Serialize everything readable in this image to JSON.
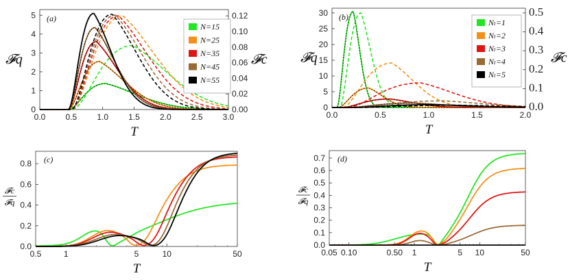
{
  "colors": {
    "green": "#22e622",
    "orange": "#f39019",
    "red": "#e01414",
    "brown": "#9a6a35",
    "black": "#000000"
  },
  "chart_data": [
    {
      "id": "a",
      "type": "line",
      "panel_label": "(a)",
      "xlabel": "T",
      "ylabel_left": "𝓕q",
      "ylabel_right": "𝓕c",
      "xlim": [
        0,
        3
      ],
      "ylim_left": [
        0,
        5.3
      ],
      "ylim_right": [
        0,
        0.128
      ],
      "xticks": [
        0.0,
        0.5,
        1.0,
        1.5,
        2.0,
        2.5,
        3.0
      ],
      "xtick_labels": [
        "0.0",
        "0.5",
        "1.0",
        "1.5",
        "2.0",
        "2.5",
        "3.0"
      ],
      "yticks_left": [
        0,
        1,
        2,
        3,
        4,
        5
      ],
      "ytick_labels_left": [
        "0",
        "1",
        "2",
        "3",
        "4",
        "5"
      ],
      "yticks_right": [
        0,
        0.02,
        0.04,
        0.06,
        0.08,
        0.1,
        0.12
      ],
      "ytick_labels_right": [
        "0.00",
        "0.02",
        "0.04",
        "0.06",
        "0.08",
        "0.10",
        "0.12"
      ],
      "legend": [
        "N=15",
        "N=25",
        "N=35",
        "N=45",
        "N=55"
      ],
      "legend_position": "top-right",
      "series": [
        {
          "name": "N=15",
          "color": "green",
          "solid": {
            "onset": 0.45,
            "peak_x": 1.05,
            "peak": 1.38,
            "decay": 0.85
          },
          "dashed": {
            "onset": 0.5,
            "peak_x": 1.48,
            "peak": 0.082,
            "decay": 0.95
          }
        },
        {
          "name": "N=25",
          "color": "orange",
          "solid": {
            "onset": 0.45,
            "peak_x": 0.95,
            "peak": 2.55,
            "decay": 0.7
          },
          "dashed": {
            "onset": 0.5,
            "peak_x": 1.32,
            "peak": 0.12,
            "decay": 0.9
          }
        },
        {
          "name": "N=35",
          "color": "red",
          "solid": {
            "onset": 0.45,
            "peak_x": 0.9,
            "peak": 3.6,
            "decay": 0.6
          },
          "dashed": {
            "onset": 0.5,
            "peak_x": 1.25,
            "peak": 0.12,
            "decay": 0.82
          }
        },
        {
          "name": "N=45",
          "color": "brown",
          "solid": {
            "onset": 0.45,
            "peak_x": 0.88,
            "peak": 4.35,
            "decay": 0.55
          },
          "dashed": {
            "onset": 0.5,
            "peak_x": 1.2,
            "peak": 0.121,
            "decay": 0.75
          }
        },
        {
          "name": "N=55",
          "color": "black",
          "solid": {
            "onset": 0.45,
            "peak_x": 0.86,
            "peak": 5.1,
            "decay": 0.5
          },
          "dashed": {
            "onset": 0.5,
            "peak_x": 1.15,
            "peak": 0.122,
            "decay": 0.7
          }
        }
      ]
    },
    {
      "id": "b",
      "type": "line",
      "panel_label": "(b)",
      "xlabel": "T",
      "ylabel_left": "𝓕q",
      "ylabel_right": "𝓕c",
      "xlim": [
        0,
        2
      ],
      "ylim_left": [
        0,
        31.5
      ],
      "ylim_right": [
        0,
        0.525
      ],
      "xticks": [
        0.0,
        0.5,
        1.0,
        1.5,
        2.0
      ],
      "xtick_labels": [
        "0.0",
        "0.5",
        "1.0",
        "1.5",
        "2.0"
      ],
      "yticks_left": [
        0,
        5,
        10,
        15,
        20,
        25,
        30
      ],
      "ytick_labels_left": [
        "0",
        "5",
        "10",
        "15",
        "20",
        "25",
        "30"
      ],
      "yticks_right": [
        0,
        0.1,
        0.2,
        0.3,
        0.4,
        0.5
      ],
      "ytick_labels_right": [
        "0.0",
        "0.1",
        "0.2",
        "0.3",
        "0.4",
        "0.5"
      ],
      "legend": [
        "Nₗ=1",
        "Nₗ=2",
        "Nₗ=3",
        "Nₗ=4",
        "Nₗ=5"
      ],
      "legend_position": "top-right",
      "series": [
        {
          "name": "Nₗ=1",
          "color": "green",
          "solid": {
            "onset": 0.05,
            "peak_x": 0.22,
            "peak": 30.5,
            "decay": 0.12
          },
          "dashed": {
            "onset": 0.08,
            "peak_x": 0.3,
            "peak": 0.5,
            "decay": 0.18
          }
        },
        {
          "name": "Nₗ=2",
          "color": "orange",
          "solid": {
            "onset": 0.06,
            "peak_x": 0.38,
            "peak": 6.2,
            "decay": 0.25
          },
          "dashed": {
            "onset": 0.1,
            "peak_x": 0.62,
            "peak": 0.235,
            "decay": 0.4
          }
        },
        {
          "name": "Nₗ=3",
          "color": "red",
          "solid": {
            "onset": 0.1,
            "peak_x": 0.6,
            "peak": 2.7,
            "decay": 0.4
          },
          "dashed": {
            "onset": 0.15,
            "peak_x": 0.92,
            "peak": 0.13,
            "decay": 0.6
          }
        },
        {
          "name": "Nₗ=4",
          "color": "brown",
          "solid": {
            "onset": 0.15,
            "peak_x": 0.85,
            "peak": 1.4,
            "decay": 0.55
          },
          "dashed": {
            "onset": 0.2,
            "peak_x": 1.15,
            "peak": 0.035,
            "decay": 0.7
          }
        },
        {
          "name": "Nₗ=5",
          "color": "black",
          "solid": {
            "onset": 0.2,
            "peak_x": 1.05,
            "peak": 0.9,
            "decay": 0.65
          },
          "dashed": {
            "onset": 0.25,
            "peak_x": 1.3,
            "peak": 0.012,
            "decay": 0.8
          }
        }
      ]
    },
    {
      "id": "c",
      "type": "line",
      "panel_label": "(c)",
      "xlabel": "T",
      "ylabel": "𝓕c/𝓕q",
      "xscale": "log",
      "xlim": [
        0.5,
        50
      ],
      "ylim": [
        0,
        0.92
      ],
      "xticks": [
        0.5,
        1,
        5,
        10,
        50
      ],
      "xtick_labels": [
        "0.5",
        "1",
        "5",
        "10",
        "50"
      ],
      "yticks": [
        0,
        0.2,
        0.4,
        0.6,
        0.8
      ],
      "ytick_labels": [
        "0.0",
        "0.2",
        "0.4",
        "0.6",
        "0.8"
      ],
      "series": [
        {
          "name": "N=15",
          "color": "green",
          "bump": {
            "x": 2.0,
            "peak": 0.12,
            "width": 0.45
          },
          "dip": 2.9,
          "rise": {
            "mid": 8,
            "top": 0.44,
            "k": 1.6
          }
        },
        {
          "name": "N=25",
          "color": "orange",
          "bump": {
            "x": 2.5,
            "peak": 0.14,
            "width": 0.5
          },
          "dip": 5.0,
          "rise": {
            "mid": 9,
            "top": 0.79,
            "k": 3.2
          }
        },
        {
          "name": "N=35",
          "color": "red",
          "bump": {
            "x": 2.7,
            "peak": 0.13,
            "width": 0.55
          },
          "dip": 6.0,
          "rise": {
            "mid": 11,
            "top": 0.87,
            "k": 3.4
          }
        },
        {
          "name": "N=45",
          "color": "brown",
          "bump": {
            "x": 3.0,
            "peak": 0.11,
            "width": 0.6
          },
          "dip": 7.0,
          "rise": {
            "mid": 12.5,
            "top": 0.89,
            "k": 3.5
          }
        },
        {
          "name": "N=55",
          "color": "black",
          "bump": {
            "x": 3.3,
            "peak": 0.1,
            "width": 0.62
          },
          "dip": 7.5,
          "rise": {
            "mid": 14,
            "top": 0.91,
            "k": 3.6
          }
        }
      ]
    },
    {
      "id": "d",
      "type": "line",
      "panel_label": "(d)",
      "xlabel": "T",
      "ylabel": "𝓕c/𝓕q",
      "xscale": "log",
      "xlim": [
        0.05,
        50
      ],
      "ylim": [
        0,
        0.76
      ],
      "xticks": [
        0.05,
        0.1,
        0.5,
        1,
        5,
        10,
        50
      ],
      "xtick_labels": [
        "0.05",
        "0.10",
        "0.50",
        "1",
        "5",
        "10",
        "50"
      ],
      "yticks": [
        0,
        0.1,
        0.2,
        0.3,
        0.4,
        0.5,
        0.6,
        0.7
      ],
      "ytick_labels": [
        "0.0",
        "0.1",
        "0.2",
        "0.3",
        "0.4",
        "0.5",
        "0.6",
        "0.7"
      ],
      "series": [
        {
          "name": "Nₗ=1",
          "color": "green",
          "bump": {
            "x": 1.1,
            "peak": 0.08,
            "width": 1.1
          },
          "dip": 2.3,
          "rise": {
            "mid": 6.5,
            "top": 0.74,
            "k": 2.6
          }
        },
        {
          "name": "Nₗ=2",
          "color": "orange",
          "bump": {
            "x": 1.25,
            "peak": 0.105,
            "width": 0.55
          },
          "dip": 2.3,
          "rise": {
            "mid": 6.5,
            "top": 0.62,
            "k": 2.6
          }
        },
        {
          "name": "Nₗ=3",
          "color": "red",
          "bump": {
            "x": 1.2,
            "peak": 0.09,
            "width": 0.5
          },
          "dip": 2.3,
          "rise": {
            "mid": 7,
            "top": 0.43,
            "k": 2.6
          }
        },
        {
          "name": "Nₗ=4",
          "color": "brown",
          "bump": {
            "x": 1.2,
            "peak": 0.035,
            "width": 0.45
          },
          "dip": 2.3,
          "rise": {
            "mid": 7.5,
            "top": 0.16,
            "k": 2.5
          }
        },
        {
          "name": "Nₗ=5",
          "color": "black",
          "bump": {
            "x": 1.2,
            "peak": 0.0,
            "width": 0.45
          },
          "dip": 2.3,
          "rise": {
            "mid": 8,
            "top": 0.0,
            "k": 2.5
          }
        }
      ]
    }
  ]
}
